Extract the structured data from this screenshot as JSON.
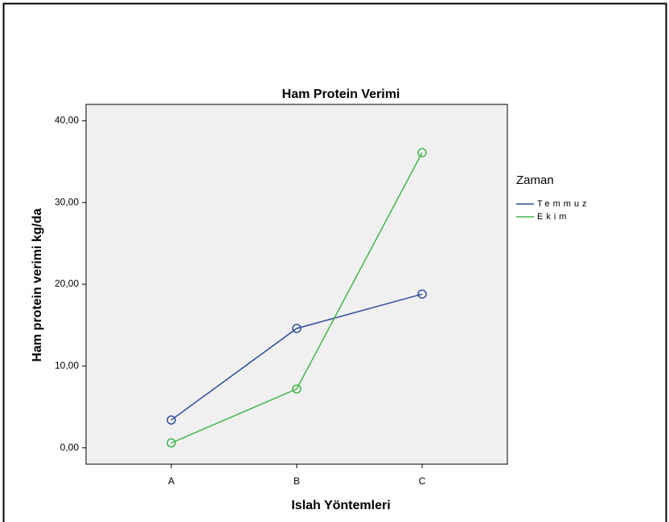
{
  "chart_data": {
    "type": "line",
    "title": "Ham Protein Verimi",
    "x_label": "Islah Yöntemleri",
    "y_label": "Ham protein verimi kg/da",
    "categories": [
      "A",
      "B",
      "C"
    ],
    "series": [
      {
        "name": "Temmuz",
        "color": "#2e4f9e",
        "values": [
          3.4,
          14.6,
          18.8
        ]
      },
      {
        "name": "Ekim",
        "color": "#3fb64a",
        "values": [
          0.6,
          7.2,
          36.1
        ]
      }
    ],
    "legend_title": "Zaman",
    "legend": "right",
    "ylim": [
      -2,
      42
    ],
    "yticks": [
      {
        "value": 0,
        "label": "0,00"
      },
      {
        "value": 10,
        "label": "10,00"
      },
      {
        "value": 20,
        "label": "20,00"
      },
      {
        "value": 30,
        "label": "30,00"
      },
      {
        "value": 40,
        "label": "40,00"
      }
    ]
  }
}
